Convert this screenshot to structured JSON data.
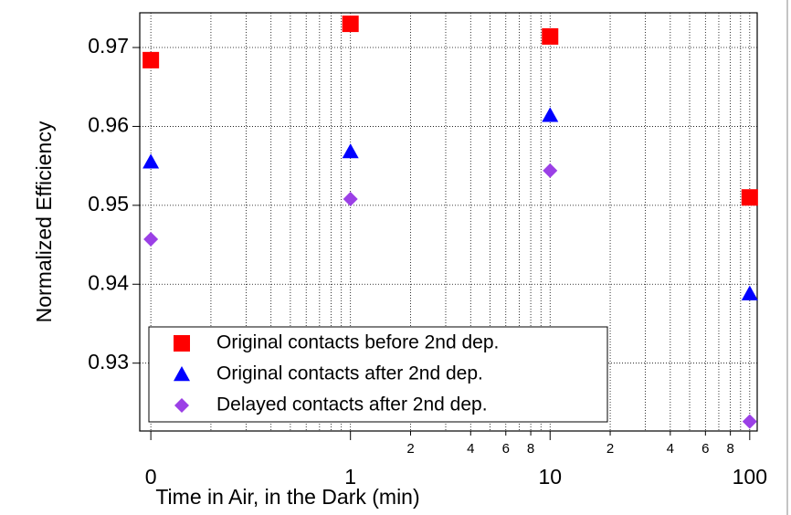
{
  "chart_data": {
    "type": "scatter",
    "xlabel": "Time in Air, in the Dark (min)",
    "ylabel": "Normalized Efficiency",
    "xscale": "log",
    "xlim": [
      0.088,
      109
    ],
    "ylim": [
      0.9214,
      0.9744
    ],
    "xticks": [
      {
        "value": 0.1,
        "label": "0"
      },
      1,
      10,
      100
    ],
    "xminorticks": [
      2,
      4,
      6,
      8,
      {
        "value": 20,
        "label": "2"
      },
      {
        "value": 40,
        "label": "4"
      },
      {
        "value": 60,
        "label": "6"
      },
      {
        "value": 80,
        "label": "8"
      }
    ],
    "xgrid": [
      0.2,
      0.3,
      0.4,
      0.5,
      0.6,
      0.7,
      0.8,
      0.9,
      2,
      3,
      4,
      5,
      6,
      7,
      8,
      9,
      20,
      30,
      40,
      50,
      60,
      70,
      80,
      90
    ],
    "yticks": [
      0.93,
      0.94,
      0.95,
      0.96,
      0.97
    ],
    "grid": true,
    "legend": "lower left",
    "x": [
      0.1,
      1,
      10,
      100
    ],
    "series": [
      {
        "name": "Original contacts before 2nd dep.",
        "color": "#ff0000",
        "marker": "square",
        "values": [
          0.9684,
          0.973,
          0.9714,
          0.951
        ]
      },
      {
        "name": "Original contacts after 2nd dep.",
        "color": "#0000ff",
        "marker": "triangle",
        "values": [
          0.9555,
          0.9568,
          0.9614,
          0.9388
        ]
      },
      {
        "name": "Delayed contacts after 2nd dep.",
        "color": "#9b40e6",
        "marker": "diamond",
        "values": [
          0.9457,
          0.9508,
          0.9544,
          0.9226
        ]
      }
    ]
  }
}
